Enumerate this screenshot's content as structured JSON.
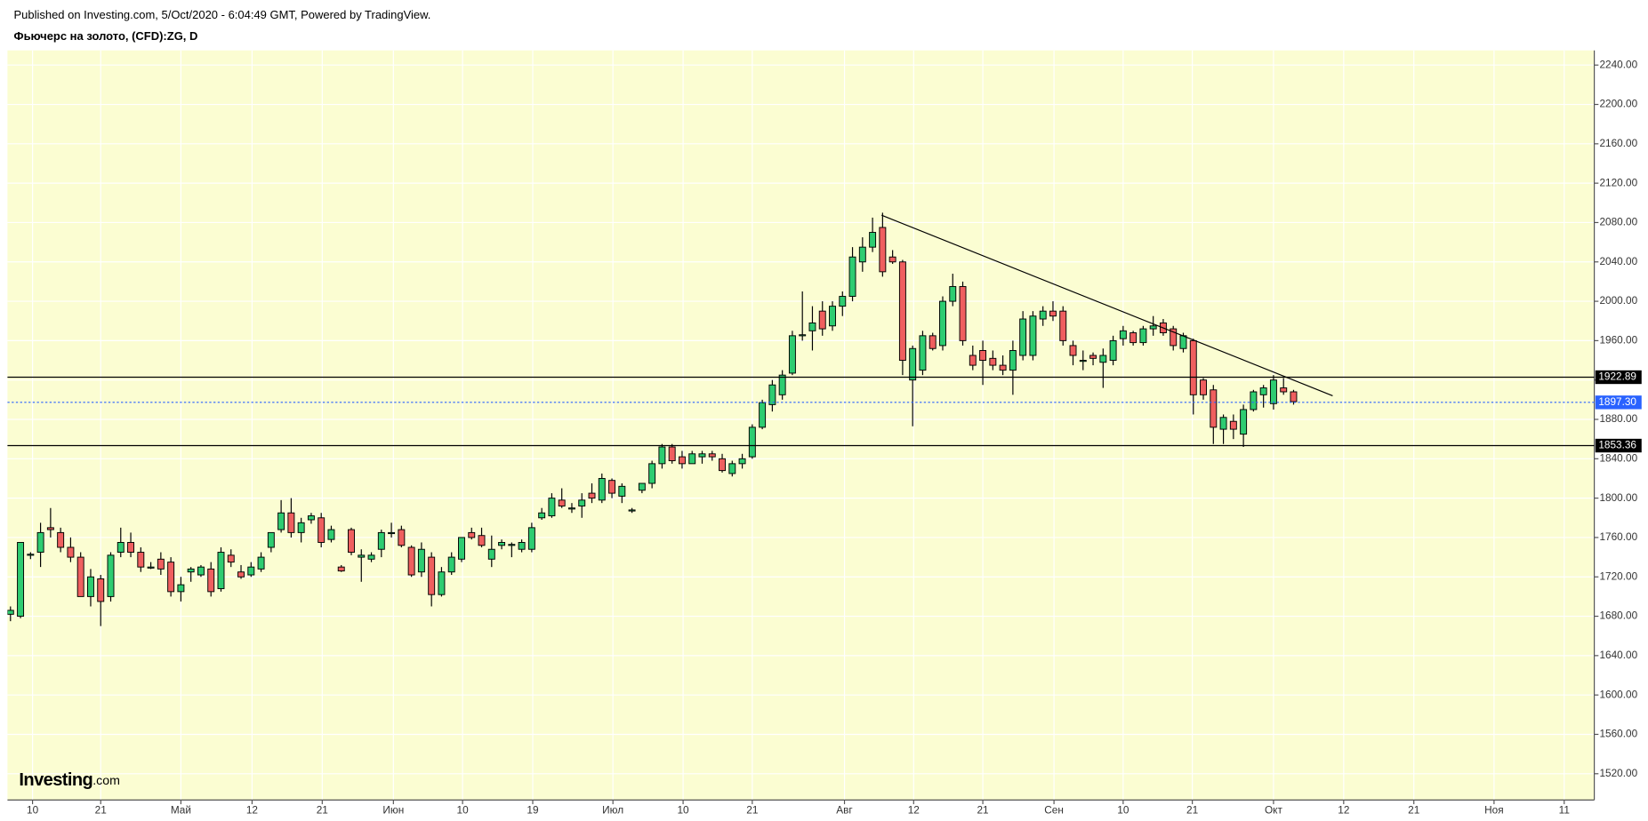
{
  "subtitle": "Published on Investing.com, 5/Oct/2020 - 6:04:49 GMT, Powered by TradingView.",
  "logo": {
    "name": "Investing",
    "suffix": ".com"
  },
  "chart_data": {
    "type": "candlestick",
    "title": "Фьючерс на золото, (CFD):ZG, D",
    "up_color": "#2ecc71",
    "down_color": "#ef5f5f",
    "wick_color": "#000000",
    "background": "#fbfdd2",
    "grid": true,
    "open": [
      1682,
      1680,
      1742,
      1745,
      1770,
      1765,
      1750,
      1740,
      1700,
      1718,
      1700,
      1745,
      1755,
      1745,
      1730,
      1738,
      1735,
      1705,
      1725,
      1722,
      1728,
      1708,
      1742,
      1725,
      1722,
      1728,
      1750,
      1768,
      1785,
      1765,
      1778,
      1780,
      1758,
      1730,
      1768,
      1740,
      1738,
      1748,
      1765,
      1768,
      1750,
      1725,
      1740,
      1702,
      1725,
      1738,
      1765,
      1762,
      1738,
      1752,
      1752,
      1748,
      1748,
      1780,
      1782,
      1798,
      1790,
      1792,
      1805,
      1798,
      1818,
      1802,
      1788,
      1808,
      1815,
      1835,
      1852,
      1842,
      1835,
      1842,
      1845,
      1840,
      1825,
      1835,
      1842,
      1872,
      1895,
      1905,
      1927,
      1965,
      1970,
      1990,
      1975,
      1995,
      2005,
      2040,
      2055,
      2075,
      2045,
      2040,
      1920,
      1930,
      1965,
      1955,
      2000,
      2015,
      1945,
      1950,
      1942,
      1935,
      1930,
      1945,
      1945,
      1982,
      1990,
      1990,
      1955,
      1940,
      1945,
      1938,
      1940,
      1962,
      1968,
      1958,
      1972,
      1978,
      1972,
      1952,
      1960,
      1920,
      1910,
      1870,
      1878,
      1865,
      1890,
      1905,
      1896,
      1912,
      1908
    ],
    "high": [
      1690,
      1755,
      1745,
      1775,
      1790,
      1770,
      1760,
      1745,
      1728,
      1722,
      1745,
      1770,
      1765,
      1750,
      1735,
      1745,
      1740,
      1720,
      1730,
      1732,
      1735,
      1750,
      1748,
      1732,
      1735,
      1745,
      1765,
      1798,
      1800,
      1780,
      1785,
      1785,
      1772,
      1732,
      1770,
      1748,
      1745,
      1768,
      1775,
      1772,
      1752,
      1755,
      1745,
      1730,
      1745,
      1760,
      1770,
      1770,
      1762,
      1758,
      1755,
      1758,
      1775,
      1790,
      1805,
      1810,
      1795,
      1805,
      1815,
      1825,
      1820,
      1815,
      1790,
      1815,
      1838,
      1855,
      1855,
      1848,
      1848,
      1848,
      1848,
      1845,
      1838,
      1845,
      1875,
      1900,
      1920,
      1930,
      1970,
      2010,
      1995,
      2000,
      2000,
      2010,
      2055,
      2065,
      2085,
      2090,
      2052,
      2042,
      1955,
      1970,
      1968,
      2005,
      2028,
      2020,
      1955,
      1960,
      1950,
      1945,
      1960,
      1990,
      1990,
      1995,
      2000,
      1995,
      1960,
      1950,
      1948,
      1952,
      1965,
      1975,
      1970,
      1975,
      1985,
      1982,
      1975,
      1968,
      1962,
      1922,
      1915,
      1885,
      1885,
      1895,
      1910,
      1915,
      1925,
      1922,
      1910
    ],
    "low": [
      1675,
      1678,
      1738,
      1730,
      1760,
      1745,
      1735,
      1700,
      1690,
      1670,
      1695,
      1740,
      1740,
      1725,
      1728,
      1722,
      1700,
      1695,
      1715,
      1720,
      1700,
      1705,
      1730,
      1718,
      1720,
      1725,
      1745,
      1765,
      1760,
      1755,
      1774,
      1750,
      1755,
      1725,
      1742,
      1715,
      1735,
      1740,
      1760,
      1750,
      1720,
      1720,
      1690,
      1700,
      1722,
      1735,
      1758,
      1750,
      1730,
      1748,
      1740,
      1745,
      1745,
      1778,
      1780,
      1790,
      1785,
      1780,
      1795,
      1795,
      1800,
      1795,
      1785,
      1805,
      1810,
      1830,
      1835,
      1830,
      1835,
      1835,
      1838,
      1826,
      1822,
      1830,
      1840,
      1870,
      1888,
      1900,
      1925,
      1960,
      1950,
      1965,
      1970,
      1985,
      2000,
      2030,
      2050,
      2025,
      2038,
      1925,
      1873,
      1925,
      1950,
      1950,
      1995,
      1955,
      1930,
      1915,
      1930,
      1925,
      1905,
      1940,
      1940,
      1975,
      1980,
      1955,
      1935,
      1930,
      1935,
      1912,
      1935,
      1955,
      1955,
      1955,
      1965,
      1965,
      1950,
      1948,
      1885,
      1900,
      1855,
      1855,
      1860,
      1852,
      1888,
      1892,
      1890,
      1905,
      1895
    ],
    "close": [
      1686,
      1755,
      1743,
      1765,
      1768,
      1750,
      1740,
      1700,
      1720,
      1695,
      1742,
      1755,
      1745,
      1730,
      1730,
      1728,
      1705,
      1712,
      1728,
      1730,
      1705,
      1745,
      1735,
      1720,
      1730,
      1740,
      1765,
      1785,
      1765,
      1775,
      1782,
      1755,
      1768,
      1726,
      1745,
      1742,
      1742,
      1765,
      1765,
      1752,
      1722,
      1748,
      1702,
      1725,
      1740,
      1760,
      1760,
      1752,
      1748,
      1755,
      1753,
      1755,
      1770,
      1785,
      1800,
      1792,
      1790,
      1798,
      1800,
      1820,
      1805,
      1812,
      1788,
      1815,
      1835,
      1852,
      1838,
      1835,
      1845,
      1845,
      1842,
      1828,
      1835,
      1840,
      1872,
      1897,
      1915,
      1925,
      1965,
      1966,
      1978,
      1972,
      1995,
      2005,
      2045,
      2055,
      2070,
      2030,
      2040,
      1940,
      1952,
      1965,
      1952,
      2000,
      2015,
      1960,
      1935,
      1940,
      1935,
      1930,
      1950,
      1982,
      1985,
      1990,
      1985,
      1960,
      1945,
      1940,
      1942,
      1945,
      1960,
      1970,
      1958,
      1972,
      1975,
      1968,
      1955,
      1965,
      1905,
      1905,
      1872,
      1882,
      1870,
      1890,
      1908,
      1912,
      1920,
      1908,
      1898
    ],
    "xlim": [
      -0.3,
      158
    ],
    "xticks": [
      {
        "value": 2.2,
        "label": "10"
      },
      {
        "value": 9,
        "label": "21"
      },
      {
        "value": 17,
        "label": "Май"
      },
      {
        "value": 24.1,
        "label": "12"
      },
      {
        "value": 31.1,
        "label": "21"
      },
      {
        "value": 38.2,
        "label": "Июн"
      },
      {
        "value": 45.1,
        "label": "10"
      },
      {
        "value": 52.1,
        "label": "19"
      },
      {
        "value": 60.1,
        "label": "Июл"
      },
      {
        "value": 67.1,
        "label": "10"
      },
      {
        "value": 74,
        "label": "21"
      },
      {
        "value": 83.2,
        "label": "Авг"
      },
      {
        "value": 90.1,
        "label": "12"
      },
      {
        "value": 97,
        "label": "21"
      },
      {
        "value": 104.1,
        "label": "Сен"
      },
      {
        "value": 111,
        "label": "10"
      },
      {
        "value": 117.9,
        "label": "21"
      },
      {
        "value": 126,
        "label": "Окт"
      },
      {
        "value": 133,
        "label": "12"
      },
      {
        "value": 140,
        "label": "21"
      },
      {
        "value": 148,
        "label": "Ноя"
      },
      {
        "value": 155,
        "label": "11"
      }
    ],
    "ylim": [
      1493.3,
      2254.9
    ],
    "yticks": [
      {
        "value": 1520,
        "label": "1520.00"
      },
      {
        "value": 1560,
        "label": "1560.00"
      },
      {
        "value": 1600,
        "label": "1600.00"
      },
      {
        "value": 1640,
        "label": "1640.00"
      },
      {
        "value": 1680,
        "label": "1680.00"
      },
      {
        "value": 1720,
        "label": "1720.00"
      },
      {
        "value": 1760,
        "label": "1760.00"
      },
      {
        "value": 1800,
        "label": "1800.00"
      },
      {
        "value": 1840,
        "label": "1840.00"
      },
      {
        "value": 1880,
        "label": "1880.00"
      },
      {
        "value": 1920,
        "label": "1920.00"
      },
      {
        "value": 1960,
        "label": "1960.00"
      },
      {
        "value": 2000,
        "label": "2000.00"
      },
      {
        "value": 2040,
        "label": "2040.00"
      },
      {
        "value": 2080,
        "label": "2080.00"
      },
      {
        "value": 2120,
        "label": "2120.00"
      },
      {
        "value": 2160,
        "label": "2160.00"
      },
      {
        "value": 2200,
        "label": "2200.00"
      },
      {
        "value": 2240,
        "label": "2240.00"
      }
    ],
    "hlines": [
      {
        "value": 1922.89,
        "color": "#000000",
        "dashed": false
      },
      {
        "value": {
          "value": 1897.3,
          "label": "1897.30"
        },
        "color": "#2962ff",
        "dashed": true
      },
      {
        "value": 1853.36,
        "color": "#000000",
        "dashed": false
      }
    ],
    "trendline": {
      "x": [
        86.9,
        131.9
      ],
      "y": [
        2087.5,
        1904
      ],
      "color": "#000000"
    }
  }
}
